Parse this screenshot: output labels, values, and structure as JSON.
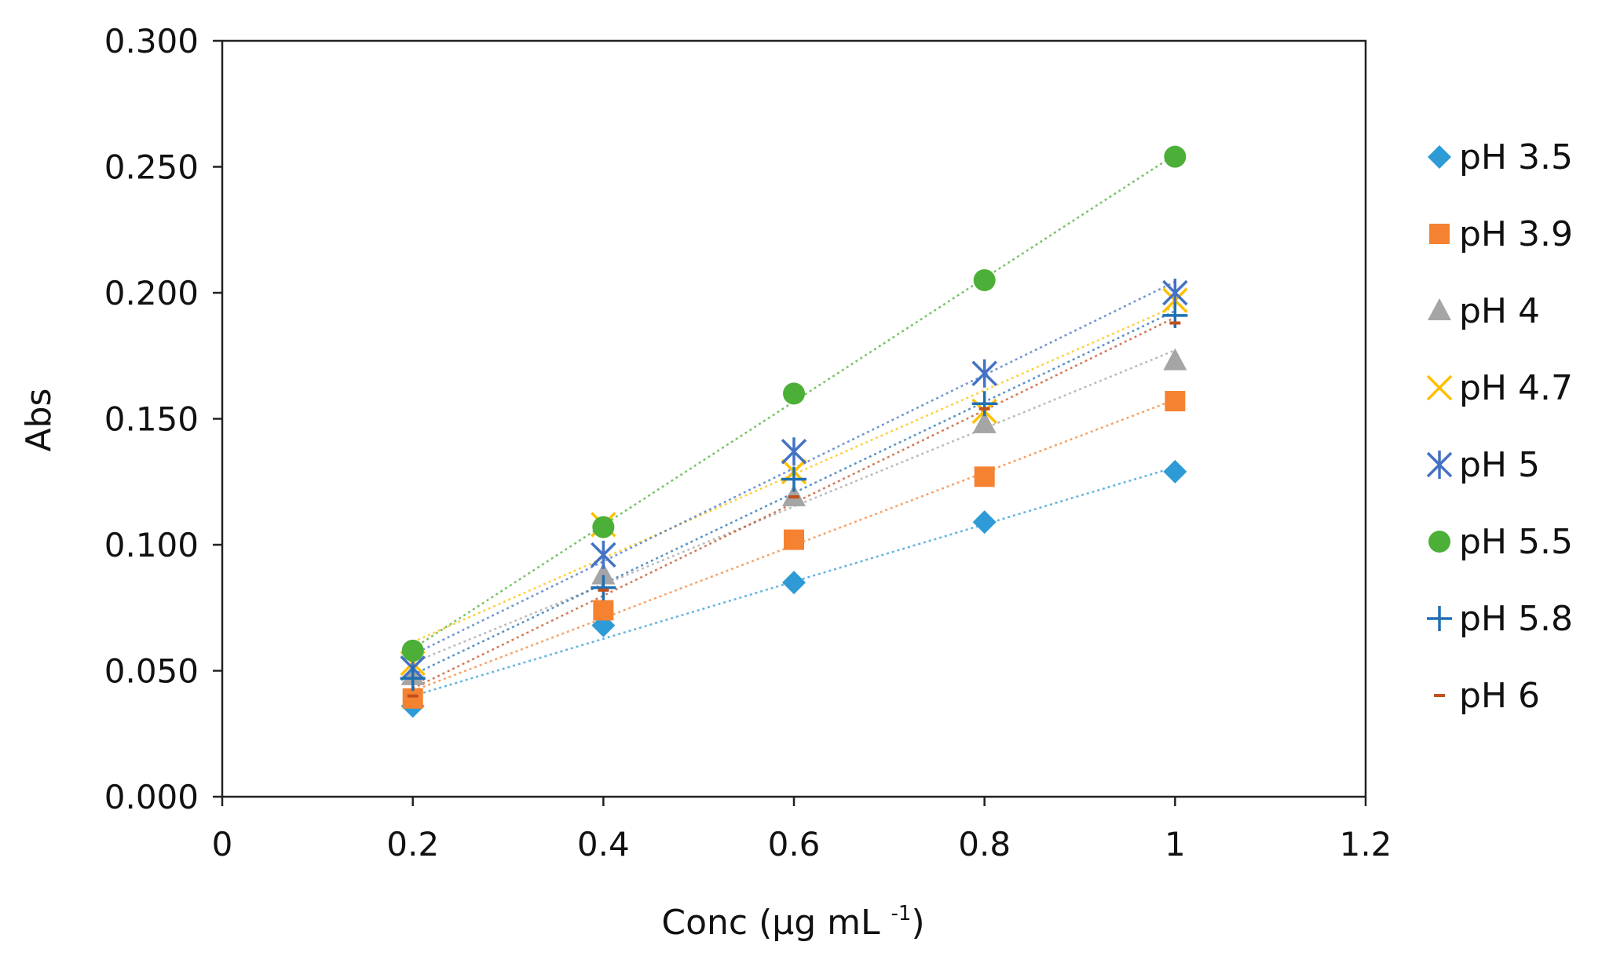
{
  "chart_data": {
    "type": "scatter",
    "title": "",
    "xlabel": "Conc (µg mL",
    "xlabel_sup": "-1",
    "xlabel_close": ")",
    "ylabel": "Abs",
    "xlim": [
      0,
      1.2
    ],
    "ylim": [
      0,
      0.3
    ],
    "xticks": [
      0,
      0.2,
      0.4,
      0.6,
      0.8,
      1,
      1.2
    ],
    "xtick_labels": [
      "0",
      "0.2",
      "0.4",
      "0.6",
      "0.8",
      "1",
      "1.2"
    ],
    "yticks": [
      0,
      0.05,
      0.1,
      0.15,
      0.2,
      0.25,
      0.3
    ],
    "ytick_labels": [
      "0.000",
      "0.050",
      "0.100",
      "0.150",
      "0.200",
      "0.250",
      "0.300"
    ],
    "grid": false,
    "legend_position": "right",
    "trendline": "linear dotted",
    "x": [
      0.2,
      0.4,
      0.6,
      0.8,
      1.0
    ],
    "series": [
      {
        "name": "pH 3.5",
        "marker": "diamond",
        "color": "#2e9bd6",
        "values": [
          0.036,
          0.068,
          0.085,
          0.109,
          0.129
        ]
      },
      {
        "name": "pH 3.9",
        "marker": "square",
        "color": "#f58230",
        "values": [
          0.039,
          0.074,
          0.102,
          0.127,
          0.157
        ]
      },
      {
        "name": "pH 4",
        "marker": "triangle",
        "color": "#a5a5a5",
        "values": [
          0.048,
          0.088,
          0.119,
          0.148,
          0.173
        ]
      },
      {
        "name": "pH 4.7",
        "marker": "x",
        "color": "#ffc000",
        "values": [
          0.053,
          0.108,
          0.129,
          0.153,
          0.197
        ]
      },
      {
        "name": "pH 5",
        "marker": "asterisk",
        "color": "#4472c4",
        "values": [
          0.051,
          0.096,
          0.137,
          0.168,
          0.2
        ]
      },
      {
        "name": "pH 5.5",
        "marker": "circle",
        "color": "#4caf37",
        "values": [
          0.058,
          0.107,
          0.16,
          0.205,
          0.254
        ]
      },
      {
        "name": "pH 5.8",
        "marker": "plus",
        "color": "#1f6fb2",
        "values": [
          0.047,
          0.083,
          0.126,
          0.156,
          0.191
        ]
      },
      {
        "name": "pH 6",
        "marker": "dash",
        "color": "#c0501f",
        "values": [
          0.04,
          0.082,
          0.119,
          0.154,
          0.188
        ]
      }
    ]
  }
}
